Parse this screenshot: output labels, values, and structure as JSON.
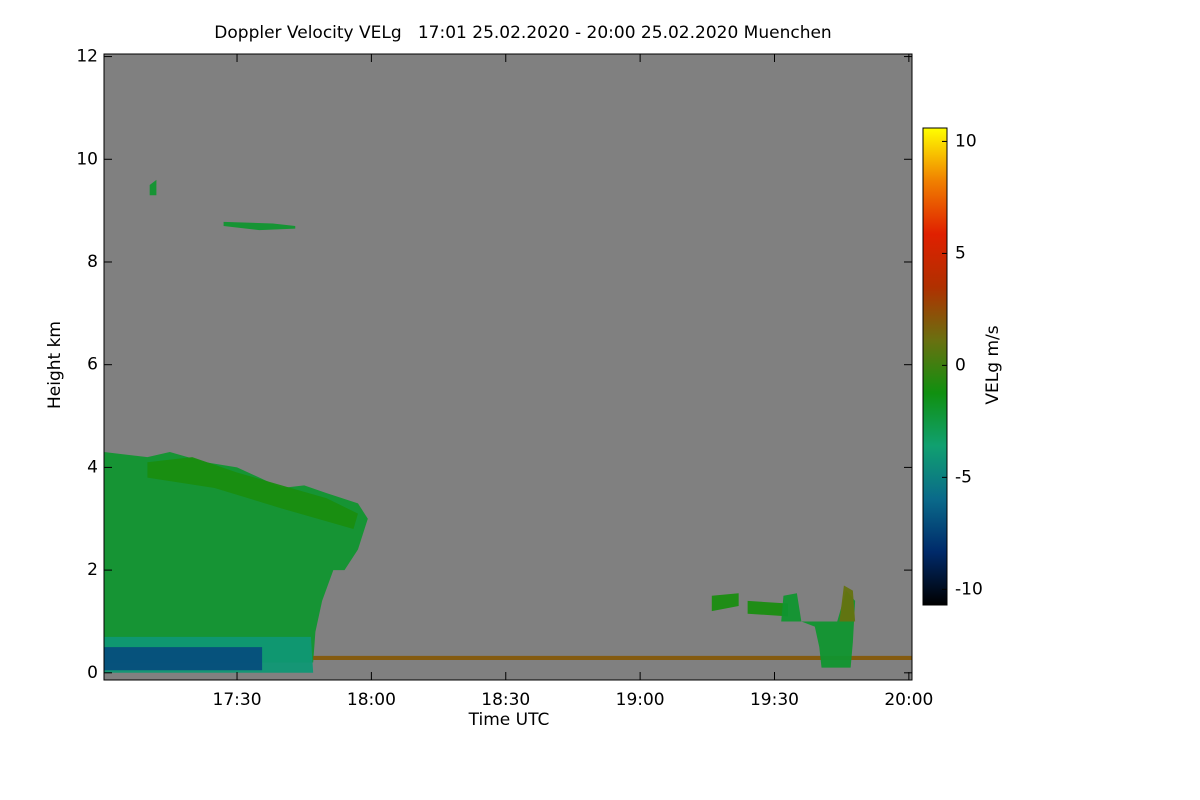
{
  "chart_data": {
    "type": "heatmap",
    "title": "Doppler Velocity VELg   17:01 25.02.2020 - 20:00 25.02.2020 Muenchen",
    "xlabel": "Time UTC",
    "ylabel": "Height km",
    "colorbar_label": "VELg m/s",
    "xlim": [
      1020.3,
      1200.7
    ],
    "xticks": [
      {
        "value": 1050,
        "label": "17:30"
      },
      {
        "value": 1080,
        "label": "18:00"
      },
      {
        "value": 1110,
        "label": "18:30"
      },
      {
        "value": 1140,
        "label": "19:00"
      },
      {
        "value": 1170,
        "label": "19:30"
      },
      {
        "value": 1200,
        "label": "20:00"
      }
    ],
    "ylim": [
      -0.14,
      12.05
    ],
    "yticks": [
      0,
      2,
      4,
      6,
      8,
      10,
      12
    ],
    "clim": [
      -10.7,
      10.6
    ],
    "cticks": [
      -10,
      -5,
      0,
      5,
      10
    ],
    "background": "#808080",
    "colormap": [
      "#000000",
      "#002a6a",
      "#0a6a8a",
      "#10a070",
      "#109010",
      "#6a7010",
      "#b03000",
      "#e02000",
      "#f08000",
      "#ffff00"
    ],
    "regions": [
      {
        "value": -2,
        "points": [
          [
            1020.3,
            0.2
          ],
          [
            1020.3,
            4.3
          ],
          [
            1030,
            4.2
          ],
          [
            1035,
            4.3
          ],
          [
            1043,
            4.1
          ],
          [
            1050,
            4.0
          ],
          [
            1055,
            3.8
          ],
          [
            1060,
            3.6
          ],
          [
            1065,
            3.65
          ],
          [
            1070,
            3.5
          ],
          [
            1077,
            3.3
          ],
          [
            1079.2,
            3.0
          ],
          [
            1077,
            2.4
          ],
          [
            1074,
            2.0
          ],
          [
            1071.5,
            2.0
          ],
          [
            1069,
            1.4
          ],
          [
            1067.5,
            0.8
          ],
          [
            1067,
            0.2
          ]
        ]
      },
      {
        "value": -1,
        "points": [
          [
            1030,
            4.1
          ],
          [
            1040,
            4.2
          ],
          [
            1050,
            3.9
          ],
          [
            1062,
            3.6
          ],
          [
            1070,
            3.4
          ],
          [
            1077,
            3.1
          ],
          [
            1076,
            2.8
          ],
          [
            1060,
            3.2
          ],
          [
            1045,
            3.6
          ],
          [
            1030,
            3.8
          ]
        ]
      },
      {
        "value": -4,
        "points": [
          [
            1020.3,
            0.0
          ],
          [
            1020.3,
            0.7
          ],
          [
            1066.5,
            0.7
          ],
          [
            1067,
            0.0
          ]
        ]
      },
      {
        "value": -7,
        "points": [
          [
            1020.3,
            0.05
          ],
          [
            1020.3,
            0.5
          ],
          [
            1055.6,
            0.5
          ],
          [
            1055.6,
            0.05
          ]
        ]
      },
      {
        "value": 2,
        "points": [
          [
            1067,
            0.25
          ],
          [
            1067,
            0.33
          ],
          [
            1200.7,
            0.33
          ],
          [
            1200.7,
            0.25
          ]
        ]
      },
      {
        "value": -1,
        "points": [
          [
            1156,
            1.2
          ],
          [
            1156,
            1.5
          ],
          [
            1162,
            1.55
          ],
          [
            1162,
            1.3
          ]
        ]
      },
      {
        "value": -1,
        "points": [
          [
            1164,
            1.15
          ],
          [
            1164,
            1.4
          ],
          [
            1173,
            1.35
          ],
          [
            1173,
            1.1
          ]
        ]
      },
      {
        "value": -2,
        "points": [
          [
            1171.5,
            1.0
          ],
          [
            1172,
            1.5
          ],
          [
            1175,
            1.55
          ],
          [
            1176,
            1.0
          ],
          [
            1179,
            0.9
          ],
          [
            1180,
            0.5
          ],
          [
            1180.5,
            0.1
          ],
          [
            1187,
            0.1
          ],
          [
            1187.5,
            0.6
          ],
          [
            1188,
            1.4
          ],
          [
            1186,
            1.6
          ],
          [
            1184,
            1.0
          ],
          [
            1179,
            1.0
          ]
        ]
      },
      {
        "value": 1,
        "points": [
          [
            1184.5,
            1.0
          ],
          [
            1185.5,
            1.7
          ],
          [
            1187.5,
            1.6
          ],
          [
            1188,
            1.0
          ]
        ]
      },
      {
        "value": -2,
        "points": [
          [
            1047,
            8.7
          ],
          [
            1047,
            8.78
          ],
          [
            1058,
            8.75
          ],
          [
            1063,
            8.7
          ],
          [
            1063,
            8.65
          ],
          [
            1055,
            8.62
          ]
        ]
      },
      {
        "value": -2,
        "points": [
          [
            1030.5,
            9.3
          ],
          [
            1030.5,
            9.5
          ],
          [
            1032,
            9.6
          ],
          [
            1032,
            9.3
          ]
        ]
      }
    ]
  }
}
